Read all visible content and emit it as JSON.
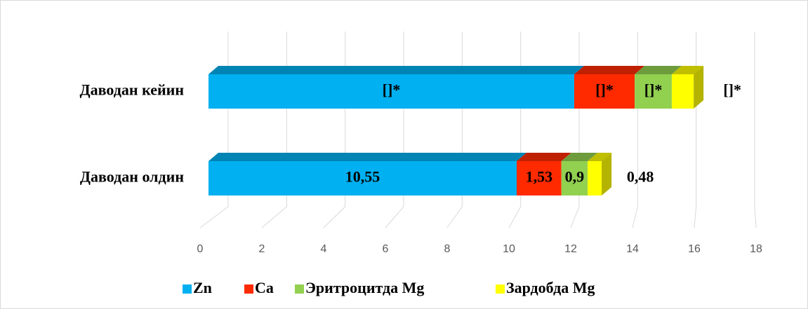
{
  "chart_data": {
    "type": "bar3d_stacked_horizontal",
    "categories": [
      "Даводан кейин",
      "Даводан олдин"
    ],
    "series": [
      {
        "name": "Zn",
        "color": "#00b0f0",
        "values": [
          12.52,
          10.55
        ],
        "value_labels": [
          "[]*",
          "10,55"
        ]
      },
      {
        "name": "Ca",
        "color": "#ff2a00",
        "values": [
          2.07,
          1.53
        ],
        "value_labels": [
          "[]*",
          "1,53"
        ]
      },
      {
        "name": "Эритроцитда Mg",
        "color": "#92d050",
        "values": [
          1.27,
          0.9
        ],
        "value_labels": [
          "[]*",
          "0,9"
        ]
      },
      {
        "name": "Зардобда Mg",
        "color": "#ffff00",
        "values": [
          0.75,
          0.48
        ],
        "value_labels": [
          "[]*",
          "0,48"
        ]
      }
    ],
    "xlim": [
      0,
      18
    ],
    "xticks": [
      0,
      2,
      4,
      6,
      8,
      10,
      12,
      14,
      16,
      18
    ],
    "grid": true,
    "legend": "bottom"
  }
}
